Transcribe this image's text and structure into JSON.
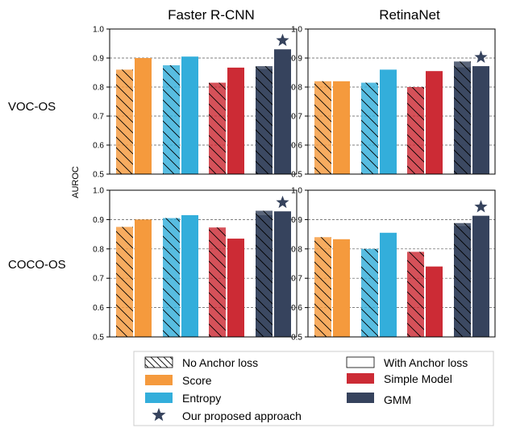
{
  "colors": {
    "Score": "#f59a3d",
    "Entropy": "#33aedb",
    "Simple Model": "#cc2b35",
    "GMM": "#36435d",
    "star": "#36435d"
  },
  "figure": {
    "columns": [
      "Faster R-CNN",
      "RetinaNet"
    ],
    "rows": [
      "VOC-OS",
      "COCO-OS"
    ],
    "ylabel": "AUROC"
  },
  "legend": {
    "no_anchor": "No Anchor loss",
    "with_anchor": "With Anchor loss",
    "score": "Score",
    "simple": "Simple Model",
    "entropy": "Entropy",
    "gmm": "GMM",
    "star": "Our proposed approach"
  },
  "chart_data": [
    {
      "type": "bar",
      "panel": "VOC-OS / Faster R-CNN",
      "categories": [
        "Score",
        "Entropy",
        "Simple Model",
        "GMM"
      ],
      "series": [
        {
          "name": "No Anchor loss",
          "values": [
            0.86,
            0.875,
            0.815,
            0.872
          ]
        },
        {
          "name": "With Anchor loss",
          "values": [
            0.9,
            0.905,
            0.867,
            0.93
          ]
        }
      ],
      "overlay_no_anchor": [
        null,
        null,
        null,
        0.862
      ],
      "star_on": "GMM",
      "ylim": [
        0.5,
        1.0
      ],
      "yticks": [
        "0.5",
        "0.6",
        "0.7",
        "0.8",
        "0.9",
        "1.0"
      ],
      "grid": true
    },
    {
      "type": "bar",
      "panel": "VOC-OS / RetinaNet",
      "categories": [
        "Score",
        "Entropy",
        "Simple Model",
        "GMM"
      ],
      "series": [
        {
          "name": "No Anchor loss",
          "values": [
            0.82,
            0.815,
            0.8,
            0.868
          ]
        },
        {
          "name": "With Anchor loss",
          "values": [
            0.82,
            0.86,
            0.855,
            0.872
          ]
        }
      ],
      "overlay_no_anchor": [
        null,
        null,
        null,
        0.888
      ],
      "star_on": "GMM",
      "ylim": [
        0.5,
        1.0
      ],
      "yticks": [
        "0.5",
        "0.6",
        "0.7",
        "0.8",
        "0.9",
        "1.0"
      ],
      "grid": true
    },
    {
      "type": "bar",
      "panel": "COCO-OS / Faster R-CNN",
      "categories": [
        "Score",
        "Entropy",
        "Simple Model",
        "GMM"
      ],
      "series": [
        {
          "name": "No Anchor loss",
          "values": [
            0.875,
            0.905,
            0.873,
            0.915
          ]
        },
        {
          "name": "With Anchor loss",
          "values": [
            0.9,
            0.915,
            0.835,
            0.928
          ]
        }
      ],
      "overlay_no_anchor": [
        null,
        null,
        null,
        0.93
      ],
      "star_on": "GMM",
      "ylim": [
        0.5,
        1.0
      ],
      "yticks": [
        "0.5",
        "0.6",
        "0.7",
        "0.8",
        "0.9",
        "1.0"
      ],
      "grid": true
    },
    {
      "type": "bar",
      "panel": "COCO-OS / RetinaNet",
      "categories": [
        "Score",
        "Entropy",
        "Simple Model",
        "GMM"
      ],
      "series": [
        {
          "name": "No Anchor loss",
          "values": [
            0.84,
            0.8,
            0.79,
            0.888
          ]
        },
        {
          "name": "With Anchor loss",
          "values": [
            0.833,
            0.855,
            0.74,
            0.913
          ]
        }
      ],
      "overlay_no_anchor": [
        null,
        null,
        null,
        0.878
      ],
      "star_on": "GMM",
      "ylim": [
        0.5,
        1.0
      ],
      "yticks": [
        "0.5",
        "0.6",
        "0.7",
        "0.8",
        "0.9",
        "1.0"
      ],
      "grid": true
    }
  ]
}
